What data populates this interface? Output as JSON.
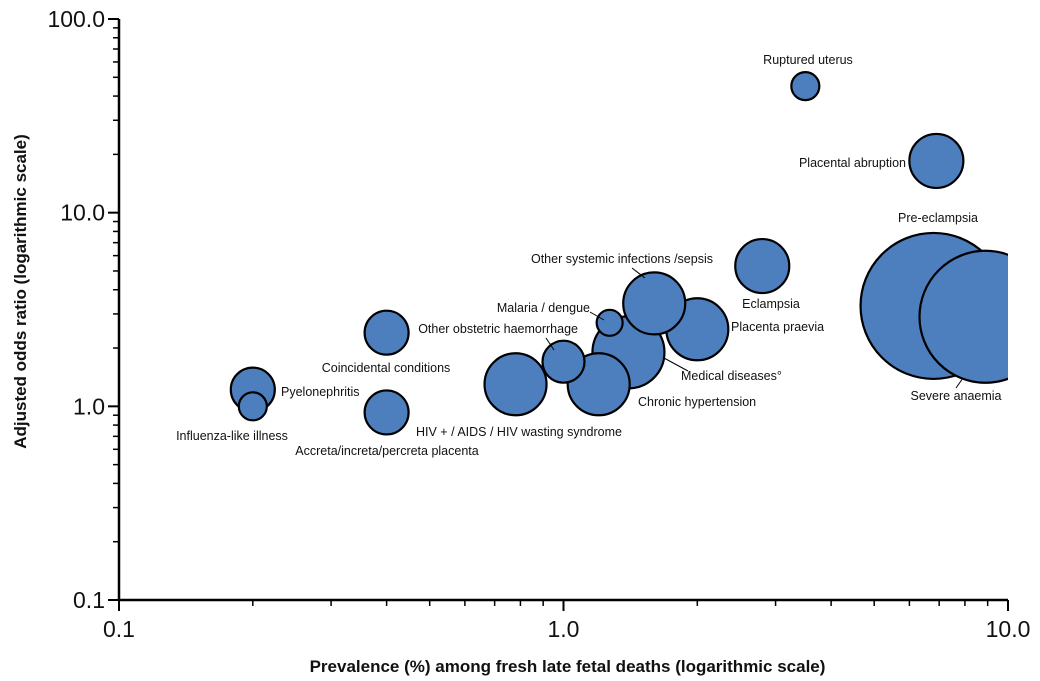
{
  "chart_data": {
    "type": "scatter",
    "x_scale": "log",
    "y_scale": "log",
    "xlim": [
      0.1,
      10.0
    ],
    "ylim": [
      0.1,
      100.0
    ],
    "xlabel": "Prevalence (%) among fresh late fetal deaths (logarithmic scale)",
    "ylabel": "Adjusted odds ratio (logarithmic scale)",
    "x_ticks": [
      {
        "value": 0.1,
        "label": "0.1"
      },
      {
        "value": 1.0,
        "label": "1.0"
      },
      {
        "value": 10.0,
        "label": "10.0"
      }
    ],
    "y_ticks": [
      {
        "value": 0.1,
        "label": "0.1"
      },
      {
        "value": 1.0,
        "label": "1.0"
      },
      {
        "value": 10.0,
        "label": "10.0"
      },
      {
        "value": 100.0,
        "label": "100.0"
      }
    ],
    "grid": false,
    "legend": "none",
    "colors": {
      "bubble_fill": "#4d7ebd",
      "bubble_stroke": "#000000"
    },
    "points": [
      {
        "label": "Ruptured uterus",
        "x": 3.5,
        "y": 45,
        "size": 14
      },
      {
        "label": "Placental abruption",
        "x": 6.9,
        "y": 18.5,
        "size": 27
      },
      {
        "label": "Pre-eclampsia",
        "x": 6.8,
        "y": 3.3,
        "size": 73
      },
      {
        "label": "Severe anaemia",
        "x": 8.9,
        "y": 2.9,
        "size": 66
      },
      {
        "label": "Eclampsia",
        "x": 2.8,
        "y": 5.3,
        "size": 27
      },
      {
        "label": "Placenta praevia",
        "x": 2.0,
        "y": 2.5,
        "size": 31
      },
      {
        "label": "Other systemic infections /sepsis",
        "x": 1.6,
        "y": 3.4,
        "size": 31
      },
      {
        "label": "Malaria / dengue",
        "x": 1.27,
        "y": 2.7,
        "size": 13
      },
      {
        "label": "Medical diseases°",
        "x": 1.4,
        "y": 1.9,
        "size": 36
      },
      {
        "label": "Other obstetric haemorrhage",
        "x": 1.0,
        "y": 1.7,
        "size": 21
      },
      {
        "label": "Chronic hypertension",
        "x": 1.2,
        "y": 1.3,
        "size": 31
      },
      {
        "label": "HIV + / AIDS / HIV wasting syndrome",
        "x": 0.78,
        "y": 1.3,
        "size": 31
      },
      {
        "label": "Coincidental conditions",
        "x": 0.4,
        "y": 2.4,
        "size": 22
      },
      {
        "label": "Accreta/increta/percreta placenta",
        "x": 0.4,
        "y": 0.93,
        "size": 22
      },
      {
        "label": "Pyelonephritis",
        "x": 0.2,
        "y": 1.22,
        "size": 22
      },
      {
        "label": "Influenza-like illness",
        "x": 0.2,
        "y": 1.0,
        "size": 14
      }
    ]
  }
}
